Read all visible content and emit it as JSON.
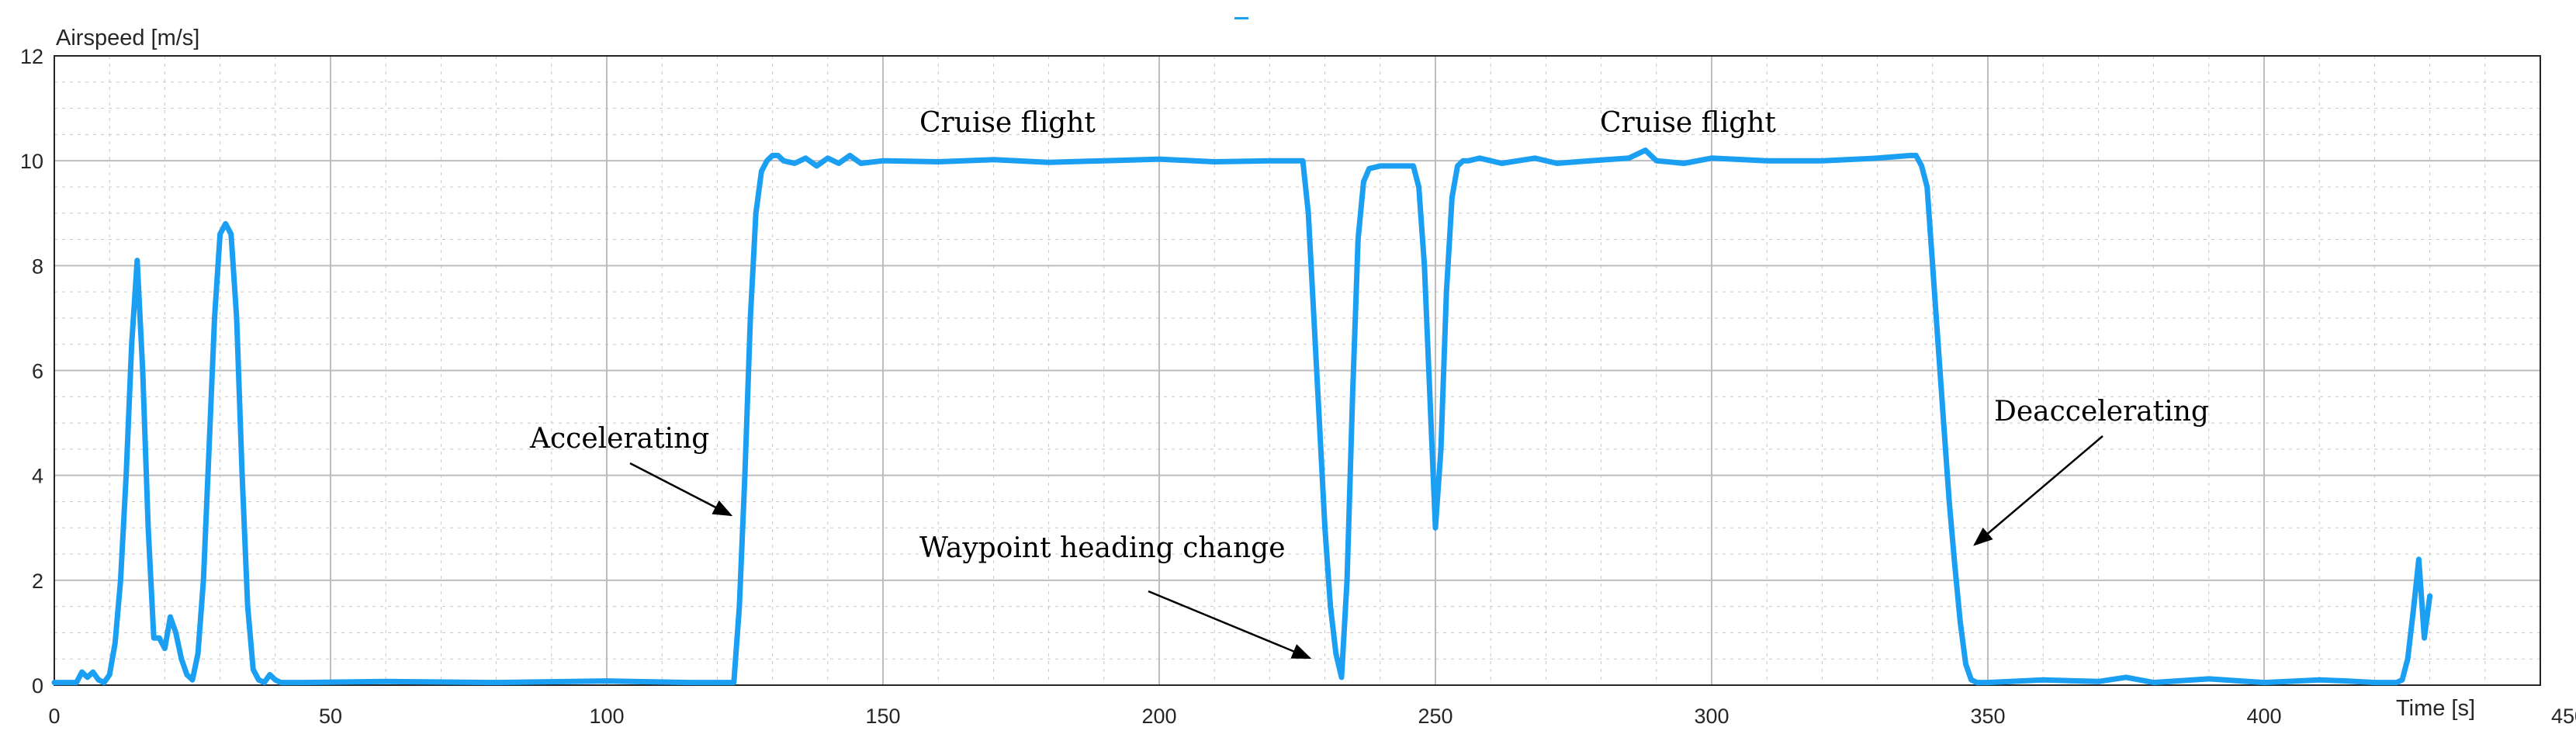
{
  "chart_data": {
    "type": "line",
    "xlabel": "Time [s]",
    "ylabel": "Airspeed [m/s]",
    "xlim": [
      0,
      450
    ],
    "ylim": [
      0,
      12
    ],
    "x_ticks": [
      0,
      50,
      100,
      150,
      200,
      250,
      300,
      350,
      400,
      450
    ],
    "y_ticks": [
      0,
      2,
      4,
      6,
      8,
      10,
      12
    ],
    "grid": true,
    "minor_grid": true,
    "line_color": "#1a9ff2",
    "series": [
      {
        "x": [
          0,
          4,
          5,
          6,
          7,
          8,
          9,
          10,
          11,
          12,
          13,
          14,
          15,
          16,
          17,
          18,
          19,
          20,
          21,
          22,
          23,
          24,
          25,
          26,
          27,
          28,
          29,
          30,
          31,
          32,
          33,
          34,
          35,
          36,
          37,
          38,
          39,
          40,
          41,
          45,
          60,
          80,
          100,
          115,
          123,
          124,
          125,
          126,
          127,
          128,
          129,
          130,
          131,
          132,
          134,
          136,
          138,
          140,
          142,
          144,
          146,
          150,
          160,
          170,
          180,
          190,
          200,
          210,
          220,
          226,
          227,
          228,
          229,
          230,
          231,
          232,
          233,
          234,
          235,
          236,
          237,
          238,
          240,
          242,
          244,
          245,
          246,
          247,
          248,
          249,
          250,
          251,
          252,
          253,
          254,
          255,
          256,
          258,
          262,
          268,
          272,
          278,
          285,
          288,
          290,
          295,
          300,
          310,
          320,
          330,
          336,
          337,
          338,
          339,
          340,
          341,
          342,
          343,
          344,
          345,
          346,
          347,
          348,
          350,
          360,
          370,
          375,
          380,
          390,
          400,
          410,
          415,
          420,
          424,
          425,
          426,
          427,
          428,
          429,
          430
        ],
        "y": [
          0.05,
          0.05,
          0.25,
          0.15,
          0.25,
          0.1,
          0.05,
          0.2,
          0.8,
          2.0,
          4.0,
          6.5,
          8.1,
          6.0,
          3.0,
          0.9,
          0.9,
          0.7,
          1.3,
          1.0,
          0.5,
          0.2,
          0.1,
          0.6,
          2.0,
          4.5,
          7.0,
          8.6,
          8.8,
          8.6,
          7.0,
          4.0,
          1.5,
          0.3,
          0.1,
          0.05,
          0.2,
          0.1,
          0.05,
          0.05,
          0.07,
          0.05,
          0.08,
          0.05,
          0.05,
          1.5,
          4.0,
          7.0,
          9.0,
          9.8,
          10.0,
          10.1,
          10.1,
          10.0,
          9.95,
          10.05,
          9.9,
          10.05,
          9.95,
          10.1,
          9.95,
          10.0,
          9.98,
          10.02,
          9.97,
          10.0,
          10.03,
          9.98,
          10.0,
          10.0,
          9.0,
          7.0,
          5.0,
          3.0,
          1.5,
          0.6,
          0.15,
          2.0,
          5.5,
          8.5,
          9.6,
          9.85,
          9.9,
          9.9,
          9.9,
          9.9,
          9.9,
          9.5,
          8.0,
          5.5,
          3.0,
          4.5,
          7.5,
          9.3,
          9.9,
          10.0,
          10.0,
          10.05,
          9.95,
          10.05,
          9.95,
          10.0,
          10.05,
          10.2,
          10.0,
          9.95,
          10.05,
          10.0,
          10.0,
          10.05,
          10.1,
          10.1,
          9.9,
          9.5,
          8.0,
          6.5,
          5.0,
          3.5,
          2.3,
          1.2,
          0.4,
          0.1,
          0.05,
          0.05,
          0.1,
          0.07,
          0.15,
          0.05,
          0.12,
          0.05,
          0.1,
          0.08,
          0.05,
          0.05,
          0.1,
          0.5,
          1.4,
          2.4,
          0.9,
          1.7
        ]
      }
    ],
    "annotations": [
      {
        "text": "Cruise flight"
      },
      {
        "text": "Cruise flight"
      },
      {
        "text": "Accelerating"
      },
      {
        "text": "Waypoint heading change"
      },
      {
        "text": "Deaccelerating"
      }
    ]
  }
}
